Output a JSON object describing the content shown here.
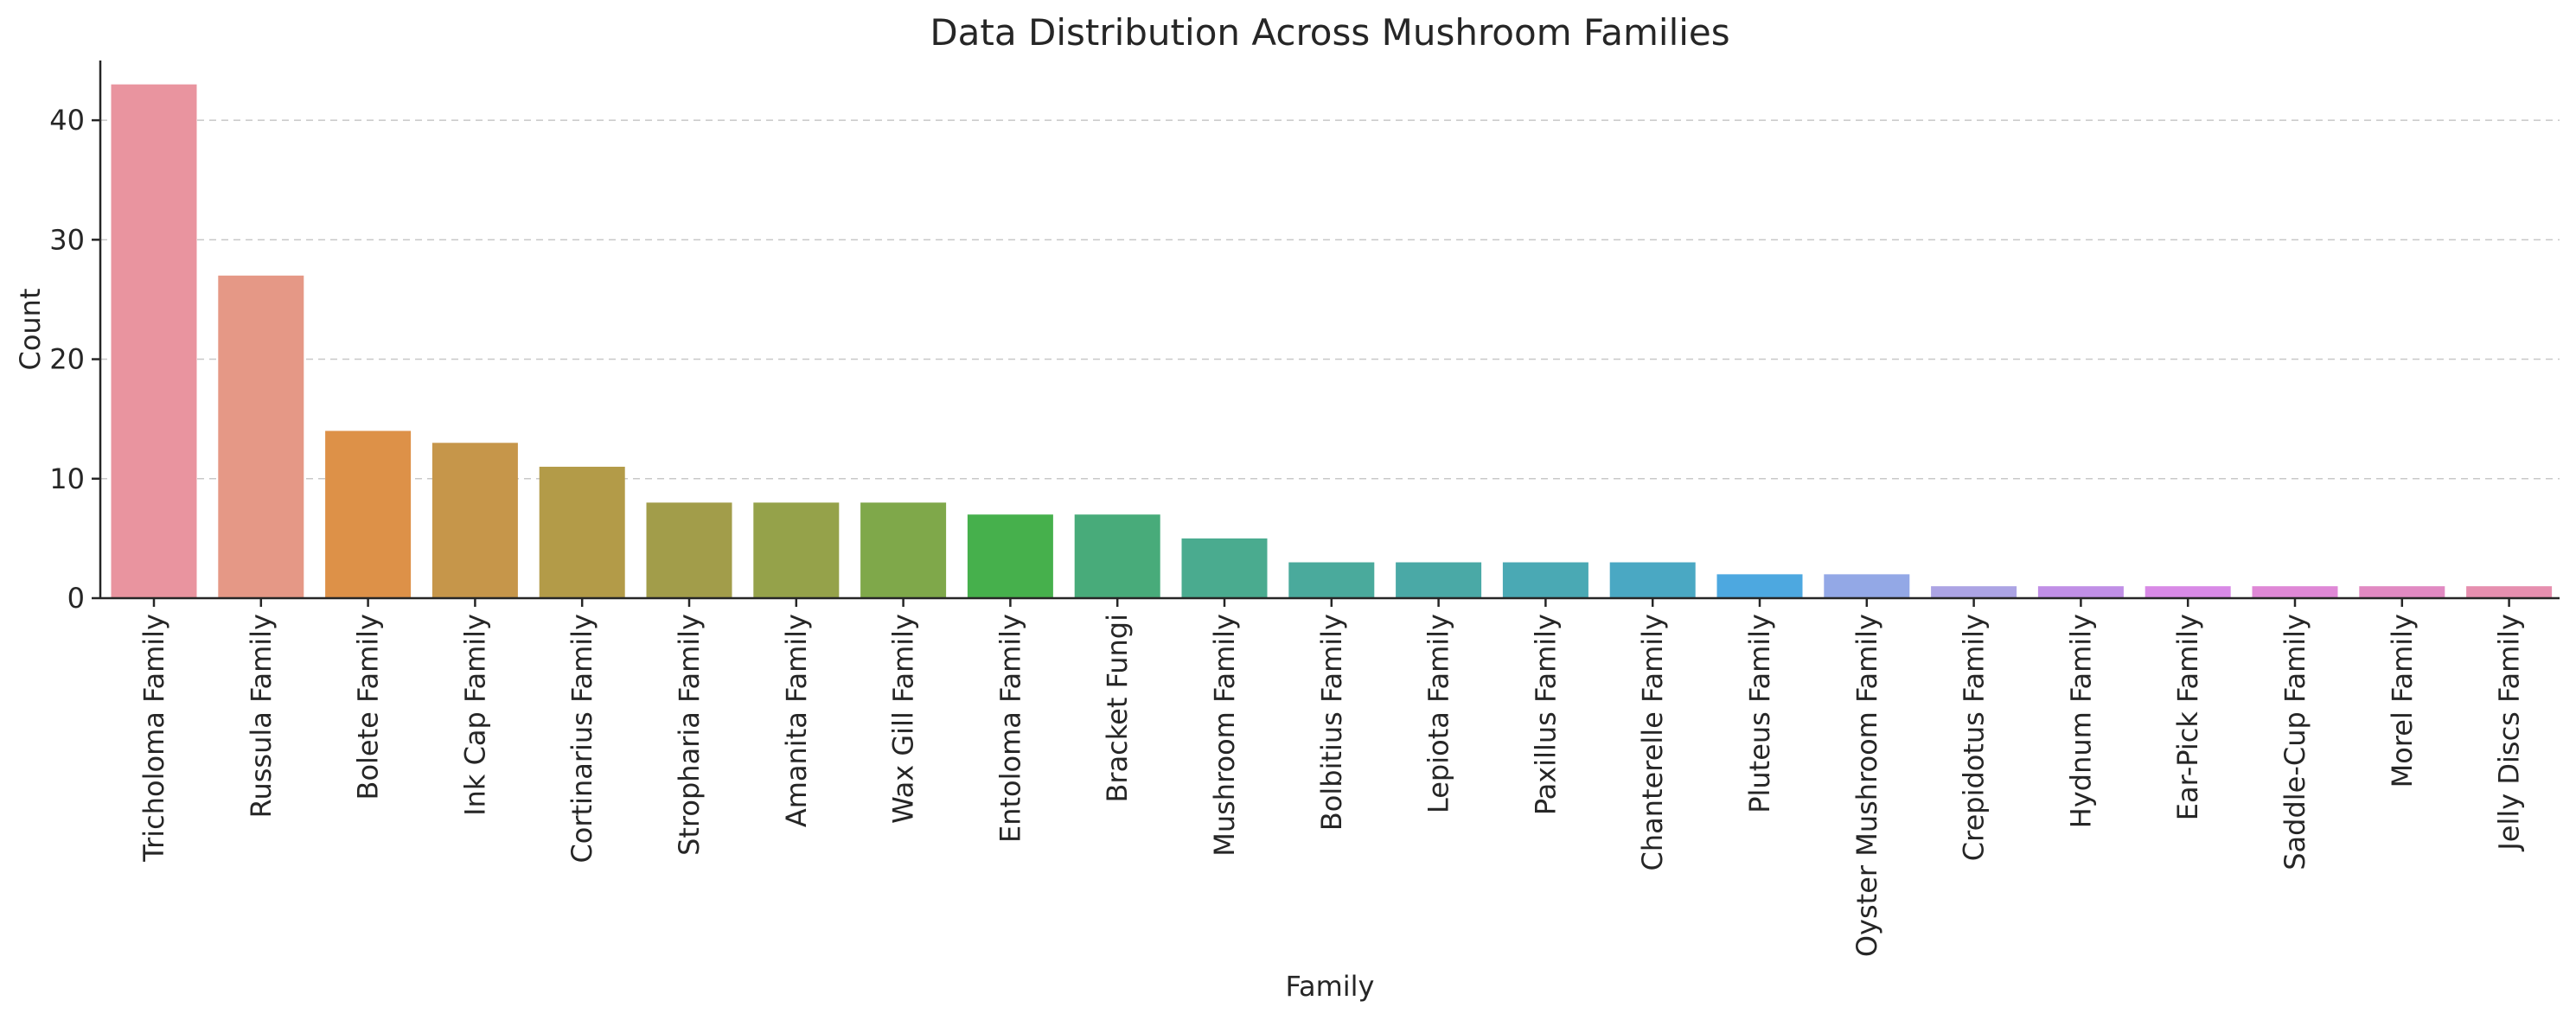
{
  "chart_data": {
    "type": "bar",
    "title": "Data Distribution Across Mushroom Families",
    "xlabel": "Family",
    "ylabel": "Count",
    "ylim": [
      0,
      45
    ],
    "yticks": [
      0,
      10,
      20,
      30,
      40
    ],
    "grid": "y-dashed",
    "categories": [
      "Tricholoma Family",
      "Russula Family",
      "Bolete Family",
      "Ink Cap Family",
      "Cortinarius Family",
      "Stropharia Family",
      "Amanita Family",
      "Wax Gill Family",
      "Entoloma Family",
      "Bracket Fungi",
      "Mushroom Family",
      "Bolbitius Family",
      "Lepiota Family",
      "Paxillus Family",
      "Chanterelle Family",
      "Pluteus Family",
      "Oyster Mushroom Family",
      "Crepidotus Family",
      "Hydnum Family",
      "Ear-Pick Family",
      "Saddle-Cup Family",
      "Morel Family",
      "Jelly Discs Family"
    ],
    "values": [
      43,
      27,
      14,
      13,
      11,
      8,
      8,
      8,
      7,
      7,
      5,
      3,
      3,
      3,
      3,
      2,
      2,
      1,
      1,
      1,
      1,
      1,
      1
    ],
    "colors": [
      "#e9949f",
      "#e59886",
      "#dd9148",
      "#c6964a",
      "#b39b48",
      "#a29d4a",
      "#95a24a",
      "#7fa84a",
      "#46b04c",
      "#48ab7a",
      "#4aab8f",
      "#4aaa9c",
      "#4aa9a6",
      "#4aa9b4",
      "#4aa8c3",
      "#4da8e0",
      "#93a8e6",
      "#aca4e4",
      "#c08fe6",
      "#d88ae6",
      "#df88d6",
      "#e18ac2",
      "#e68faf"
    ]
  }
}
